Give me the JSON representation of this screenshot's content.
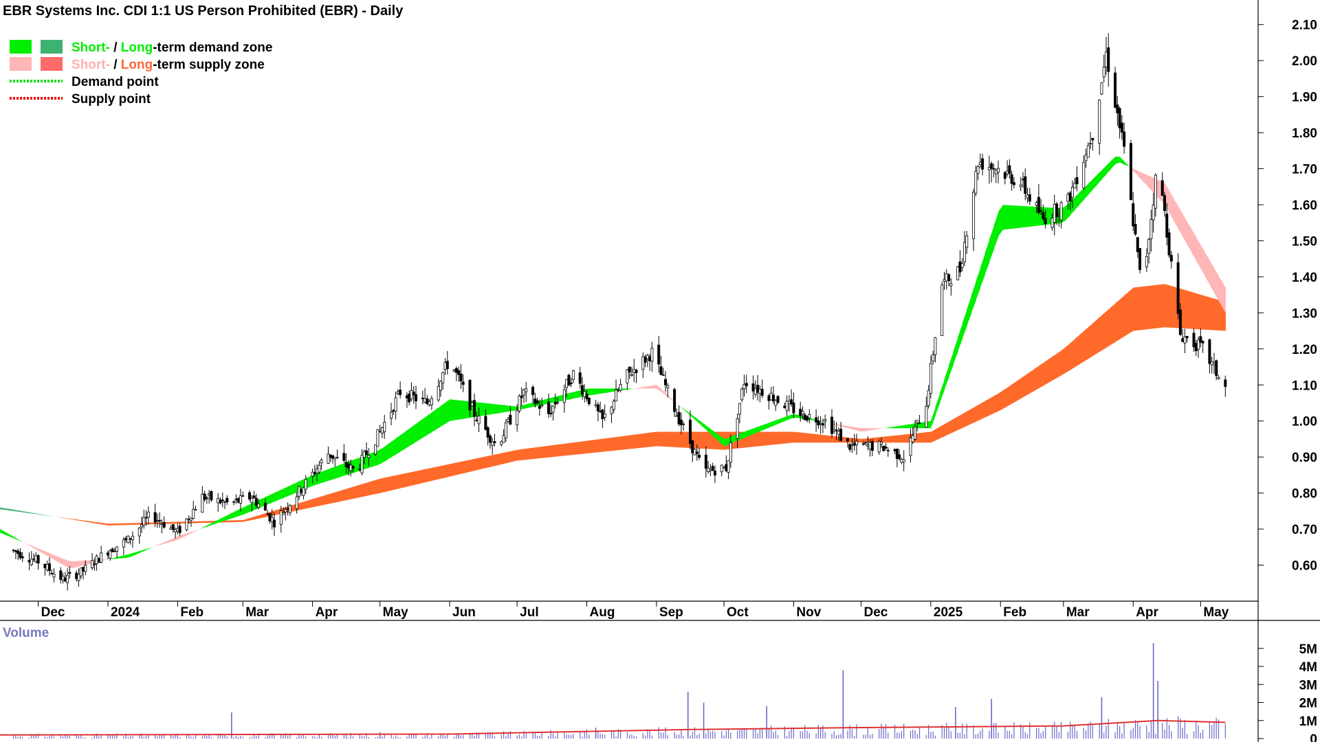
{
  "chart_data": {
    "type": "candlestick",
    "title": "EBR Systems Inc. CDI 1:1 US Person Prohibited (EBR) - Daily",
    "legend": {
      "placement": "top-left",
      "entries": [
        {
          "parts": [
            {
              "text": "Short-",
              "color": "#00ee00"
            },
            {
              "text": " / ",
              "color": "#000000"
            },
            {
              "text": "Long",
              "color": "#00ee00"
            },
            {
              "text": "-term demand zone",
              "color": "#000000"
            }
          ],
          "swatches": [
            "#00ee00",
            "#3cb371"
          ]
        },
        {
          "parts": [
            {
              "text": "Short-",
              "color": "#ffb0b0"
            },
            {
              "text": " / ",
              "color": "#000000"
            },
            {
              "text": "Long",
              "color": "#ff6a3a"
            },
            {
              "text": "-term supply zone",
              "color": "#000000"
            }
          ],
          "swatches": [
            "#ffb6b6",
            "#ff6a6a"
          ]
        },
        {
          "parts": [
            {
              "text": "Demand point",
              "color": "#000000"
            }
          ],
          "dotted": "#00dd00"
        },
        {
          "parts": [
            {
              "text": "Supply point",
              "color": "#000000"
            }
          ],
          "dotted": "#ee0000"
        }
      ]
    },
    "y_axis": {
      "ticks": [
        "2.10",
        "2.00",
        "1.90",
        "1.80",
        "1.70",
        "1.60",
        "1.50",
        "1.40",
        "1.30",
        "1.20",
        "1.10",
        "1.00",
        "0.90",
        "0.80",
        "0.70",
        "0.60"
      ],
      "range": [
        0.5,
        2.13
      ],
      "position": "right"
    },
    "x_axis": {
      "ticks": [
        "Dec",
        "2024",
        "Feb",
        "Mar",
        "Apr",
        "May",
        "Jun",
        "Jul",
        "Aug",
        "Sep",
        "Oct",
        "Nov",
        "Dec",
        "2025",
        "Feb",
        "Mar",
        "Apr",
        "May"
      ],
      "tick_dates": [
        "2023-12-01",
        "2024-01-01",
        "2024-02-01",
        "2024-03-01",
        "2024-04-01",
        "2024-05-01",
        "2024-06-01",
        "2024-07-01",
        "2024-08-01",
        "2024-09-01",
        "2024-10-01",
        "2024-11-01",
        "2024-12-01",
        "2025-01-01",
        "2025-02-01",
        "2025-03-01",
        "2025-04-01",
        "2025-05-01"
      ],
      "range": [
        "2023-11-14",
        "2025-05-22"
      ]
    },
    "close": [
      {
        "date": "2023-11-20",
        "value": 0.64
      },
      {
        "date": "2023-12-01",
        "value": 0.61
      },
      {
        "date": "2023-12-12",
        "value": 0.56
      },
      {
        "date": "2023-12-20",
        "value": 0.58
      },
      {
        "date": "2024-01-01",
        "value": 0.64
      },
      {
        "date": "2024-01-10",
        "value": 0.67
      },
      {
        "date": "2024-01-20",
        "value": 0.74
      },
      {
        "date": "2024-02-01",
        "value": 0.69
      },
      {
        "date": "2024-02-12",
        "value": 0.79
      },
      {
        "date": "2024-02-24",
        "value": 0.77
      },
      {
        "date": "2024-03-05",
        "value": 0.79
      },
      {
        "date": "2024-03-15",
        "value": 0.72
      },
      {
        "date": "2024-03-28",
        "value": 0.82
      },
      {
        "date": "2024-04-08",
        "value": 0.91
      },
      {
        "date": "2024-04-20",
        "value": 0.86
      },
      {
        "date": "2024-05-01",
        "value": 0.97
      },
      {
        "date": "2024-05-10",
        "value": 1.08
      },
      {
        "date": "2024-05-22",
        "value": 1.05
      },
      {
        "date": "2024-06-01",
        "value": 1.17
      },
      {
        "date": "2024-06-12",
        "value": 1.02
      },
      {
        "date": "2024-06-22",
        "value": 0.93
      },
      {
        "date": "2024-07-04",
        "value": 1.08
      },
      {
        "date": "2024-07-15",
        "value": 1.02
      },
      {
        "date": "2024-07-26",
        "value": 1.13
      },
      {
        "date": "2024-08-08",
        "value": 1.0
      },
      {
        "date": "2024-08-18",
        "value": 1.12
      },
      {
        "date": "2024-08-30",
        "value": 1.19
      },
      {
        "date": "2024-09-10",
        "value": 1.02
      },
      {
        "date": "2024-09-22",
        "value": 0.86
      },
      {
        "date": "2024-10-02",
        "value": 0.87
      },
      {
        "date": "2024-10-10",
        "value": 1.11
      },
      {
        "date": "2024-10-22",
        "value": 1.07
      },
      {
        "date": "2024-11-04",
        "value": 1.02
      },
      {
        "date": "2024-11-15",
        "value": 1.0
      },
      {
        "date": "2024-11-26",
        "value": 0.93
      },
      {
        "date": "2024-12-10",
        "value": 0.93
      },
      {
        "date": "2024-12-20",
        "value": 0.9
      },
      {
        "date": "2024-12-30",
        "value": 1.05
      },
      {
        "date": "2025-01-06",
        "value": 1.38
      },
      {
        "date": "2025-01-14",
        "value": 1.42
      },
      {
        "date": "2025-01-22",
        "value": 1.72
      },
      {
        "date": "2025-01-31",
        "value": 1.7
      },
      {
        "date": "2025-02-10",
        "value": 1.66
      },
      {
        "date": "2025-02-20",
        "value": 1.56
      },
      {
        "date": "2025-03-03",
        "value": 1.61
      },
      {
        "date": "2025-03-14",
        "value": 1.8
      },
      {
        "date": "2025-03-20",
        "value": 2.02
      },
      {
        "date": "2025-03-28",
        "value": 1.75
      },
      {
        "date": "2025-04-05",
        "value": 1.36
      },
      {
        "date": "2025-04-12",
        "value": 1.72
      },
      {
        "date": "2025-04-22",
        "value": 1.24
      },
      {
        "date": "2025-05-02",
        "value": 1.2
      },
      {
        "date": "2025-05-12",
        "value": 1.09
      }
    ],
    "zones": {
      "short": [
        {
          "date": "2023-11-14",
          "a": 0.7,
          "b": 0.69
        },
        {
          "date": "2023-12-15",
          "a": 0.59,
          "b": 0.61
        },
        {
          "date": "2024-01-10",
          "a": 0.63,
          "b": 0.62
        },
        {
          "date": "2024-02-01",
          "a": 0.67,
          "b": 0.68
        },
        {
          "date": "2024-03-01",
          "a": 0.76,
          "b": 0.74
        },
        {
          "date": "2024-04-01",
          "a": 0.85,
          "b": 0.82
        },
        {
          "date": "2024-05-01",
          "a": 0.92,
          "b": 0.88
        },
        {
          "date": "2024-06-01",
          "a": 1.06,
          "b": 1.0
        },
        {
          "date": "2024-07-01",
          "a": 1.04,
          "b": 1.03
        },
        {
          "date": "2024-08-01",
          "a": 1.09,
          "b": 1.07
        },
        {
          "date": "2024-09-01",
          "a": 1.09,
          "b": 1.1
        },
        {
          "date": "2024-10-01",
          "a": 0.95,
          "b": 0.93
        },
        {
          "date": "2024-11-01",
          "a": 1.02,
          "b": 1.01
        },
        {
          "date": "2024-12-01",
          "a": 0.97,
          "b": 0.98
        },
        {
          "date": "2025-01-01",
          "a": 1.0,
          "b": 0.98
        },
        {
          "date": "2025-02-01",
          "a": 1.6,
          "b": 1.53
        },
        {
          "date": "2025-03-01",
          "a": 1.59,
          "b": 1.55
        },
        {
          "date": "2025-03-25",
          "a": 1.74,
          "b": 1.72
        },
        {
          "date": "2025-04-15",
          "a": 1.6,
          "b": 1.66
        },
        {
          "date": "2025-05-12",
          "a": 1.3,
          "b": 1.37
        }
      ],
      "long": [
        {
          "date": "2023-11-14",
          "a": 0.76,
          "b": 0.755
        },
        {
          "date": "2024-01-01",
          "a": 0.71,
          "b": 0.715
        },
        {
          "date": "2024-03-01",
          "a": 0.72,
          "b": 0.725
        },
        {
          "date": "2024-05-01",
          "a": 0.8,
          "b": 0.84
        },
        {
          "date": "2024-07-01",
          "a": 0.89,
          "b": 0.92
        },
        {
          "date": "2024-09-01",
          "a": 0.93,
          "b": 0.97
        },
        {
          "date": "2024-10-01",
          "a": 0.92,
          "b": 0.97
        },
        {
          "date": "2024-11-01",
          "a": 0.94,
          "b": 0.97
        },
        {
          "date": "2024-12-01",
          "a": 0.94,
          "b": 0.95
        },
        {
          "date": "2025-01-01",
          "a": 0.94,
          "b": 0.97
        },
        {
          "date": "2025-02-01",
          "a": 1.03,
          "b": 1.08
        },
        {
          "date": "2025-03-01",
          "a": 1.13,
          "b": 1.2
        },
        {
          "date": "2025-04-01",
          "a": 1.25,
          "b": 1.37
        },
        {
          "date": "2025-04-15",
          "a": 1.26,
          "b": 1.38
        },
        {
          "date": "2025-05-12",
          "a": 1.25,
          "b": 1.33
        }
      ]
    },
    "volume": {
      "title": "Volume",
      "y_ticks": [
        "5M",
        "4M",
        "3M",
        "2M",
        "1M",
        "0"
      ],
      "range": [
        0,
        5.6
      ],
      "spikes": [
        {
          "date": "2024-02-25",
          "value": 1.45
        },
        {
          "date": "2024-05-01",
          "value": 0.35
        },
        {
          "date": "2024-06-05",
          "value": 0.25
        },
        {
          "date": "2024-08-05",
          "value": 0.6
        },
        {
          "date": "2024-09-15",
          "value": 2.6
        },
        {
          "date": "2024-09-22",
          "value": 2.0
        },
        {
          "date": "2024-10-20",
          "value": 1.8
        },
        {
          "date": "2024-11-23",
          "value": 3.8
        },
        {
          "date": "2025-01-12",
          "value": 1.75
        },
        {
          "date": "2025-01-28",
          "value": 2.2
        },
        {
          "date": "2025-03-18",
          "value": 2.3
        },
        {
          "date": "2025-04-10",
          "value": 5.3
        },
        {
          "date": "2025-04-12",
          "value": 3.2
        }
      ],
      "average": [
        {
          "date": "2023-11-14",
          "value": 0.2
        },
        {
          "date": "2024-06-01",
          "value": 0.25
        },
        {
          "date": "2024-09-15",
          "value": 0.5
        },
        {
          "date": "2024-11-23",
          "value": 0.6
        },
        {
          "date": "2025-03-01",
          "value": 0.7
        },
        {
          "date": "2025-04-12",
          "value": 1.0
        },
        {
          "date": "2025-05-12",
          "value": 0.9
        }
      ],
      "average_color": "#e03030",
      "bar_color": "#6a6ac8"
    }
  }
}
